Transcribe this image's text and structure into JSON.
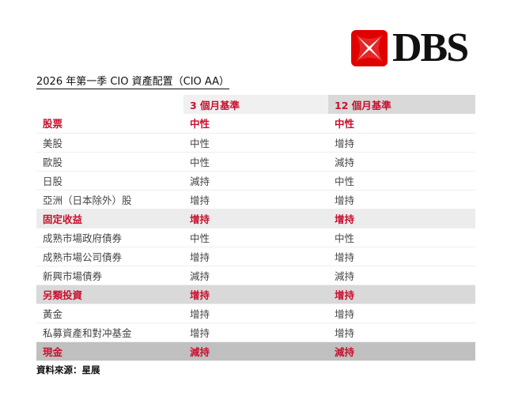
{
  "logo": {
    "text": "DBS",
    "brand_color": "#e10000"
  },
  "title": "2026 年第一季 CIO 資產配置（CIO AA）",
  "table": {
    "headers": [
      "",
      "3 個月基準",
      "12 個月基準"
    ],
    "rows": [
      {
        "label": "股票",
        "m3": "中性",
        "m12": "中性",
        "category": true,
        "shade": ""
      },
      {
        "label": "美股",
        "m3": "中性",
        "m12": "增持",
        "category": false,
        "shade": ""
      },
      {
        "label": "歐股",
        "m3": "中性",
        "m12": "減持",
        "category": false,
        "shade": ""
      },
      {
        "label": "日股",
        "m3": "減持",
        "m12": "中性",
        "category": false,
        "shade": ""
      },
      {
        "label": "亞洲（日本除外）股",
        "m3": "增持",
        "m12": "增持",
        "category": false,
        "shade": ""
      },
      {
        "label": "固定收益",
        "m3": "增持",
        "m12": "增持",
        "category": true,
        "shade": "g1"
      },
      {
        "label": "成熟市場政府債券",
        "m3": "中性",
        "m12": "中性",
        "category": false,
        "shade": ""
      },
      {
        "label": "成熟市場公司債券",
        "m3": "增持",
        "m12": "增持",
        "category": false,
        "shade": ""
      },
      {
        "label": "新興市場債券",
        "m3": "減持",
        "m12": "減持",
        "category": false,
        "shade": ""
      },
      {
        "label": "另類投資",
        "m3": "增持",
        "m12": "增持",
        "category": true,
        "shade": "g2"
      },
      {
        "label": "黃金",
        "m3": "增持",
        "m12": "增持",
        "category": false,
        "shade": ""
      },
      {
        "label": "私募資產和對冲基金",
        "m3": "增持",
        "m12": "增持",
        "category": false,
        "shade": ""
      },
      {
        "label": "現金",
        "m3": "減持",
        "m12": "減持",
        "category": true,
        "shade": "g3"
      }
    ]
  },
  "source": "資料來源：星展",
  "colors": {
    "accent": "#c8102e"
  }
}
